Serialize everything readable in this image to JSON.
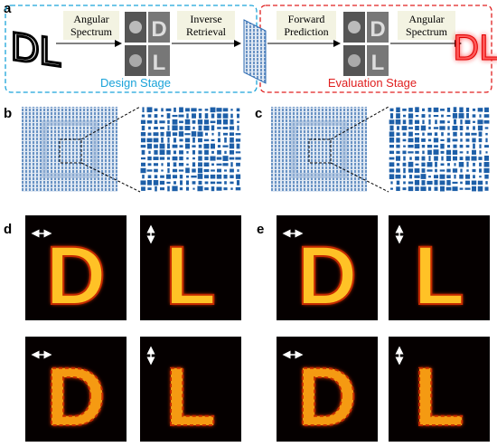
{
  "panels": {
    "a": {
      "label": "a",
      "input_text": "DL",
      "output_text": "DL",
      "design": {
        "box1": [
          "Angular",
          "Spectrum"
        ],
        "box2": [
          "Inverse",
          "Retrieval"
        ],
        "stage": "Design Stage"
      },
      "evaluation": {
        "box1": [
          "Forward",
          "Prediction"
        ],
        "box2": [
          "Angular",
          "Spectrum"
        ],
        "stage": "Evaluation Stage"
      }
    },
    "b": {
      "label": "b"
    },
    "c": {
      "label": "c"
    },
    "d": {
      "label": "d",
      "letters": [
        "D",
        "L",
        "D",
        "L"
      ]
    },
    "e": {
      "label": "e",
      "letters": [
        "D",
        "L",
        "D",
        "L"
      ]
    }
  }
}
